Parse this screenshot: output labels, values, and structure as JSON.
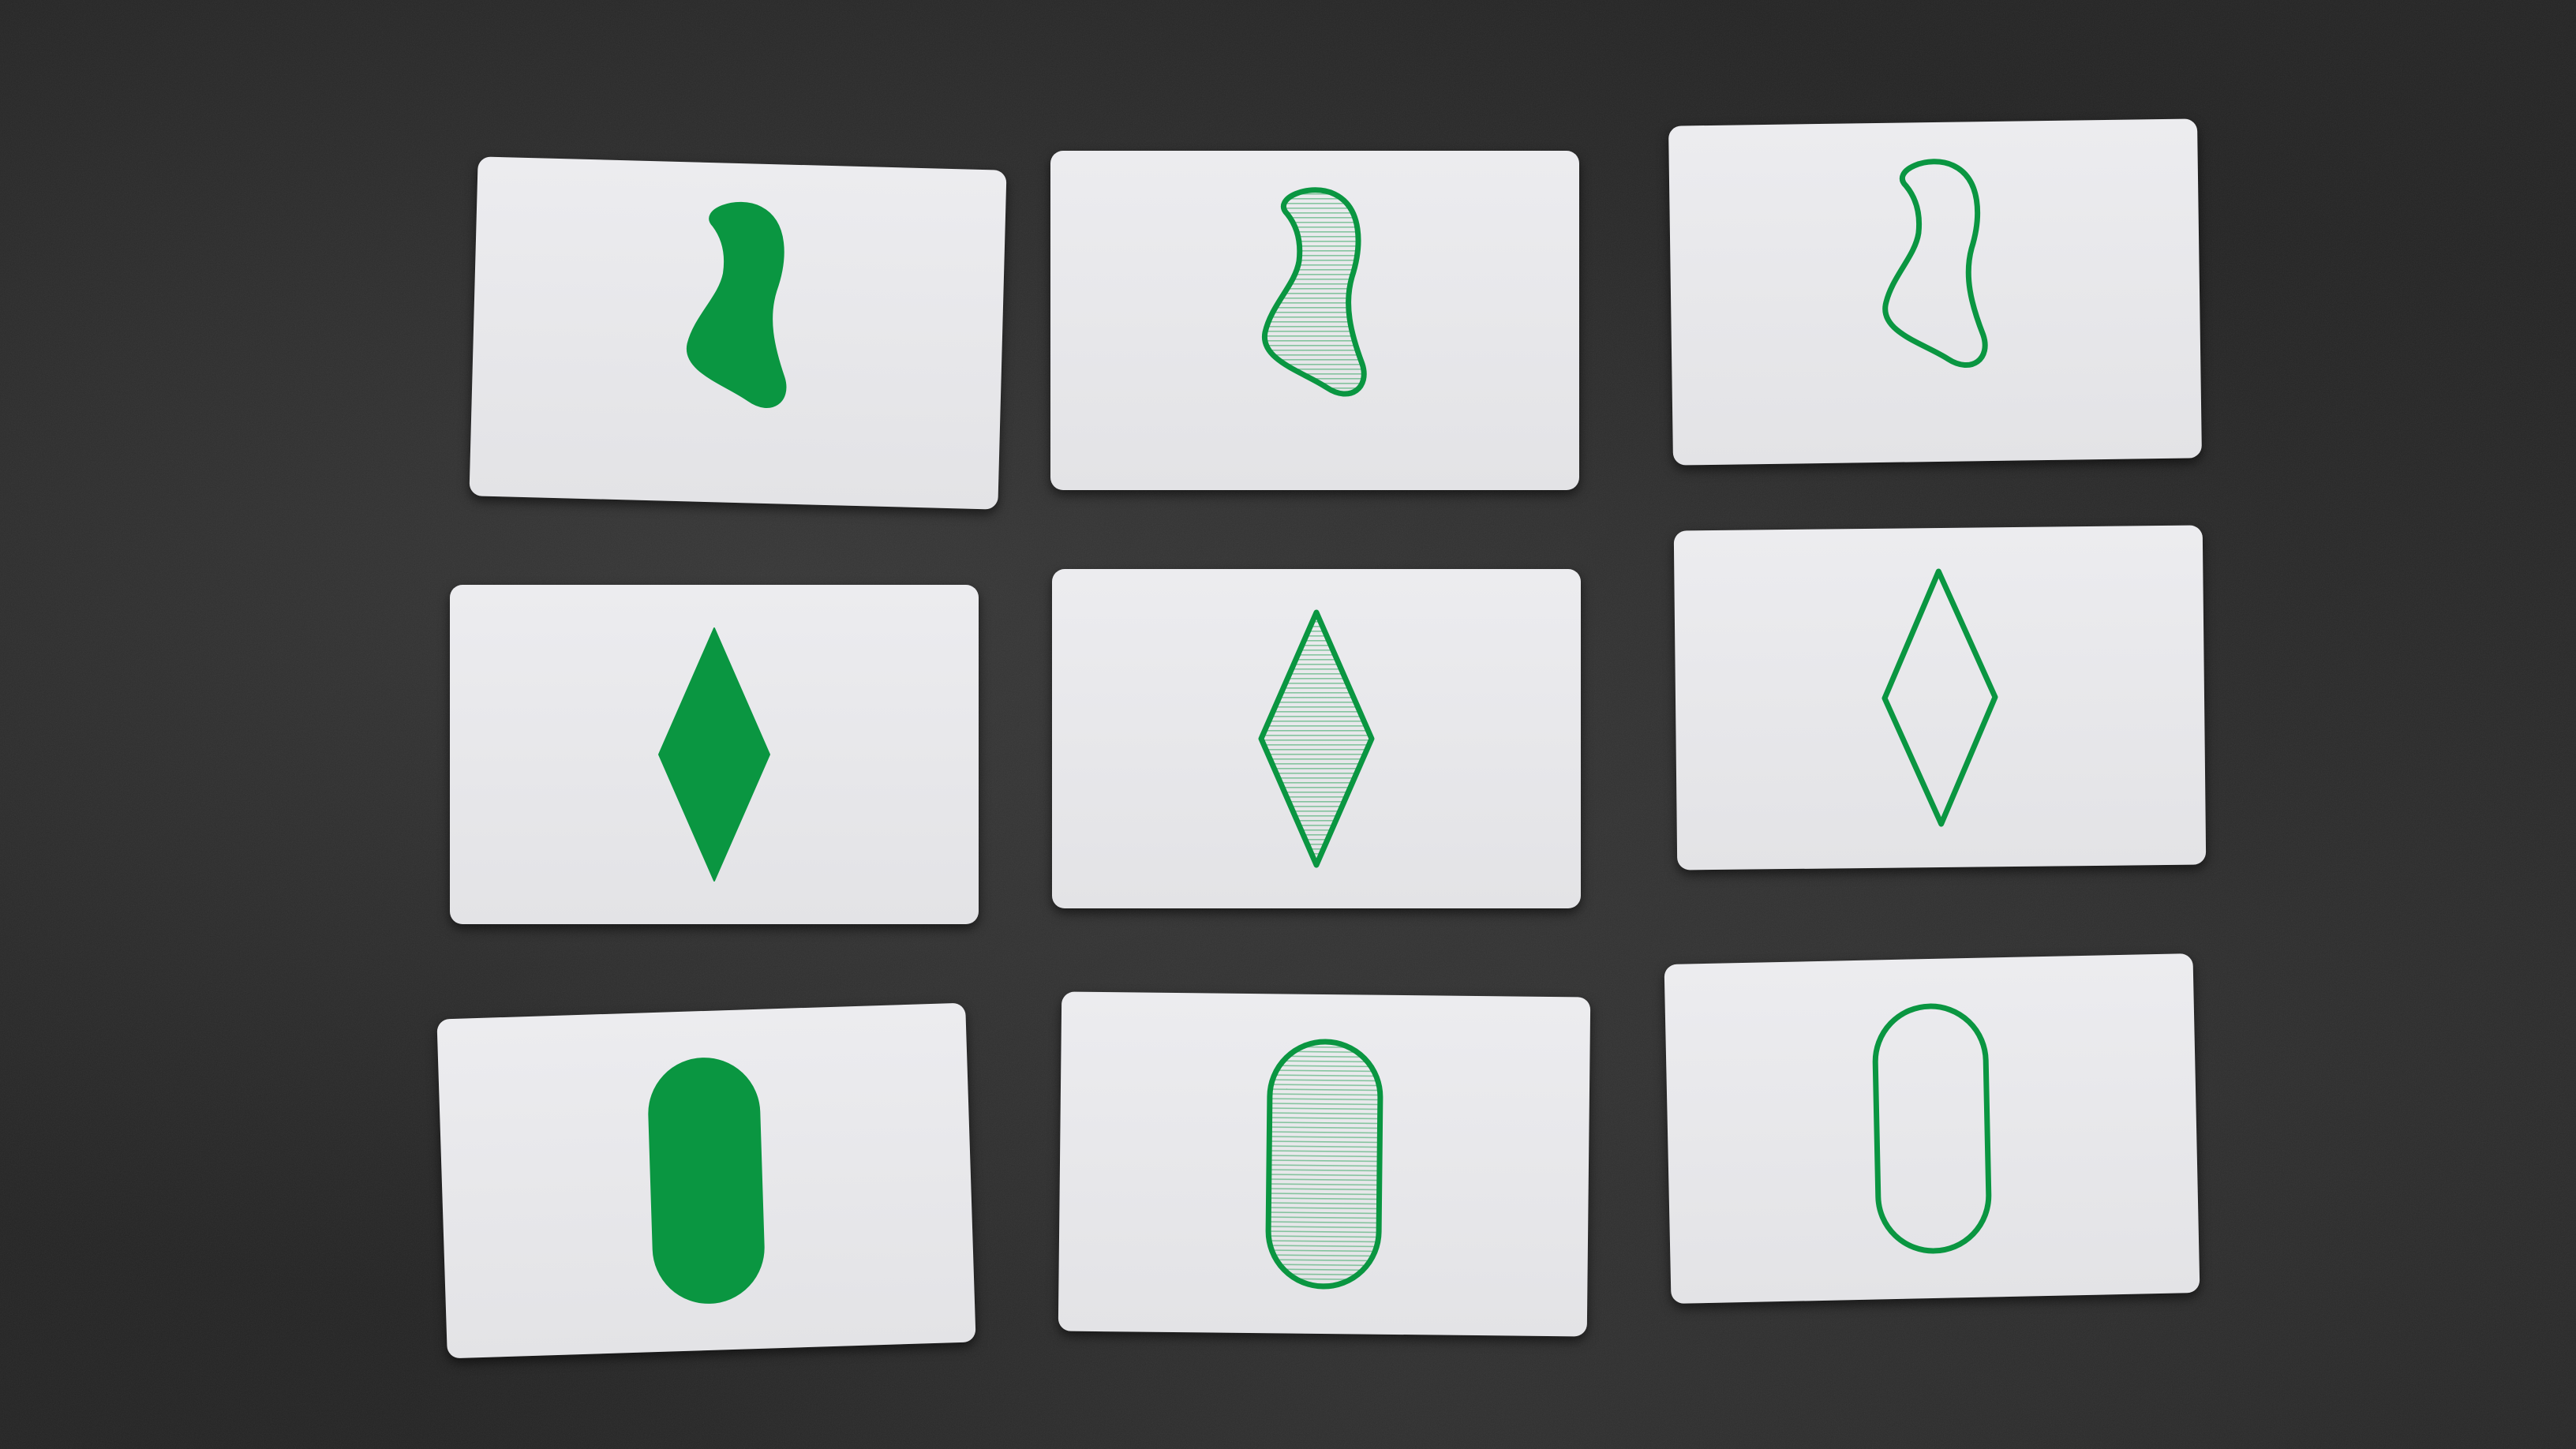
{
  "scene": {
    "description_label": "",
    "table_color": "#242424",
    "card_color": "#e8e8eb",
    "symbol_color": "#0a9641"
  },
  "cards": [
    {
      "id": "r1c1",
      "shape": "squiggle",
      "shading": "solid",
      "color": "green",
      "count": 1
    },
    {
      "id": "r1c2",
      "shape": "squiggle",
      "shading": "striped",
      "color": "green",
      "count": 1
    },
    {
      "id": "r1c3",
      "shape": "squiggle",
      "shading": "open",
      "color": "green",
      "count": 1
    },
    {
      "id": "r2c1",
      "shape": "diamond",
      "shading": "solid",
      "color": "green",
      "count": 1
    },
    {
      "id": "r2c2",
      "shape": "diamond",
      "shading": "striped",
      "color": "green",
      "count": 1
    },
    {
      "id": "r2c3",
      "shape": "diamond",
      "shading": "open",
      "color": "green",
      "count": 1
    },
    {
      "id": "r3c1",
      "shape": "oval",
      "shading": "solid",
      "color": "green",
      "count": 1
    },
    {
      "id": "r3c2",
      "shape": "oval",
      "shading": "striped",
      "color": "green",
      "count": 1
    },
    {
      "id": "r3c3",
      "shape": "oval",
      "shading": "open",
      "color": "green",
      "count": 1
    }
  ]
}
